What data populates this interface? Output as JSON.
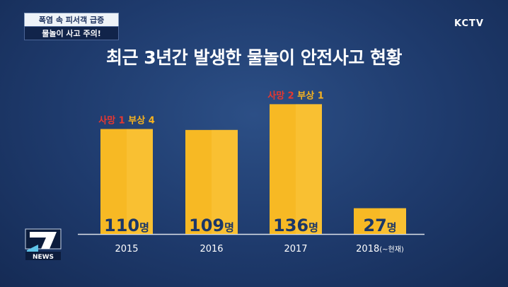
{
  "captions": {
    "line1": "폭염 속 피서객 급증",
    "line2": "물놀이 사고 주의!"
  },
  "channel": "KCTV",
  "news_logo": "7 NEWS",
  "chart_data": {
    "type": "bar",
    "title": "최근 3년간 발생한 물놀이 안전사고 현황",
    "categories": [
      "2015",
      "2016",
      "2017",
      "2018"
    ],
    "category_suffixes": [
      "",
      "",
      "",
      "(~현재)"
    ],
    "values": [
      110,
      109,
      136,
      27
    ],
    "value_unit": "명",
    "annotations": [
      {
        "category": "2015",
        "death": "사망 1",
        "injury": "부상 4"
      },
      {
        "category": "2016",
        "death": "",
        "injury": ""
      },
      {
        "category": "2017",
        "death": "사망 2",
        "injury": "부상 1"
      },
      {
        "category": "2018",
        "death": "",
        "injury": ""
      }
    ],
    "ylim": [
      0,
      140
    ],
    "grid": false,
    "legend": "none",
    "colors": {
      "bar": "#f7b924",
      "bar_right": "#fbc73e",
      "value_text": "#1b3768",
      "death": "#e8372f",
      "injury": "#f6b21f",
      "axis": "#ffffff"
    }
  }
}
